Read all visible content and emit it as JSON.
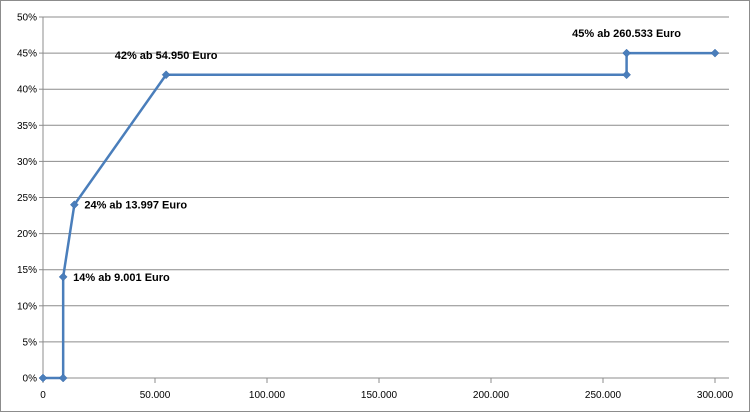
{
  "chart_data": {
    "type": "line",
    "x": [
      0,
      9001,
      9001,
      13997,
      54950,
      260532,
      260533,
      300000
    ],
    "y": [
      0,
      0,
      14,
      24,
      42,
      42,
      45,
      45
    ],
    "xlim": [
      0,
      300000
    ],
    "ylim": [
      0,
      50
    ],
    "xticks": [
      0,
      50000,
      100000,
      150000,
      200000,
      250000,
      300000
    ],
    "xtick_labels": [
      "0",
      "50.000",
      "100.000",
      "150.000",
      "200.000",
      "250.000",
      "300.000"
    ],
    "yticks": [
      0,
      5,
      10,
      15,
      20,
      25,
      30,
      35,
      40,
      45,
      50
    ],
    "ytick_labels": [
      "0%",
      "5%",
      "10%",
      "15%",
      "20%",
      "25%",
      "30%",
      "35%",
      "40%",
      "45%",
      "50%"
    ],
    "grid": true,
    "line_color": "#4a7ebb",
    "annotations": [
      {
        "text": "14% ab 9.001  Euro",
        "x": 9001,
        "y": 14,
        "position": "right"
      },
      {
        "text": "24% ab 13.997  Euro",
        "x": 13997,
        "y": 24,
        "position": "right"
      },
      {
        "text": "42% ab 54.950  Euro",
        "x": 54950,
        "y": 42,
        "position": "above"
      },
      {
        "text": "45% ab 260.533  Euro",
        "x": 260533,
        "y": 45,
        "position": "above"
      }
    ]
  }
}
